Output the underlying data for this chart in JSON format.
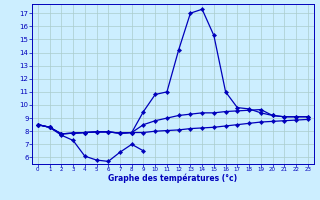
{
  "background_color": "#cceeff",
  "line_color": "#0000bb",
  "grid_color": "#aacccc",
  "xlabel": "Graphe des températures (°c)",
  "ylabel_ticks": [
    6,
    7,
    8,
    9,
    10,
    11,
    12,
    13,
    14,
    15,
    16,
    17
  ],
  "xlabel_ticks": [
    0,
    1,
    2,
    3,
    4,
    5,
    6,
    7,
    8,
    9,
    10,
    11,
    12,
    13,
    14,
    15,
    16,
    17,
    18,
    19,
    20,
    21,
    22,
    23
  ],
  "line_low": [
    8.5,
    8.3,
    7.7,
    7.3,
    6.1,
    5.8,
    5.7,
    6.4,
    7.0,
    6.5,
    null,
    null,
    null,
    null,
    null,
    null,
    null,
    null,
    null,
    null,
    null,
    null,
    null,
    null
  ],
  "line_min": [
    8.5,
    8.3,
    7.8,
    7.85,
    7.9,
    7.95,
    7.95,
    7.85,
    7.9,
    7.9,
    8.0,
    8.05,
    8.1,
    8.2,
    8.25,
    8.3,
    8.4,
    8.5,
    8.6,
    8.7,
    8.75,
    8.8,
    8.85,
    8.9
  ],
  "line_avg": [
    8.5,
    8.3,
    7.8,
    7.85,
    7.9,
    7.95,
    7.95,
    7.85,
    7.9,
    8.5,
    8.8,
    9.0,
    9.2,
    9.3,
    9.4,
    9.4,
    9.5,
    9.55,
    9.6,
    9.65,
    9.2,
    9.1,
    9.1,
    9.1
  ],
  "line_main": [
    8.5,
    8.3,
    7.8,
    7.85,
    7.9,
    7.95,
    7.95,
    7.85,
    7.9,
    9.5,
    10.8,
    11.0,
    14.2,
    17.0,
    17.3,
    15.3,
    11.0,
    9.8,
    9.7,
    9.4,
    9.2,
    9.1,
    9.1,
    9.1
  ],
  "ylim": [
    5.5,
    17.7
  ],
  "xlim": [
    -0.5,
    23.5
  ]
}
